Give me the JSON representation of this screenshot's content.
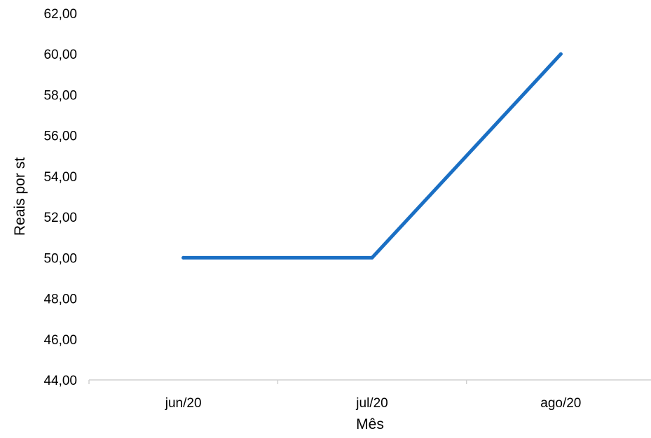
{
  "chart_data": {
    "type": "line",
    "title": "",
    "xlabel": "Mês",
    "ylabel": "Reais por st",
    "categories": [
      "jun/20",
      "jul/20",
      "ago/20"
    ],
    "series": [
      {
        "values": [
          50.0,
          50.0,
          60.0
        ]
      }
    ],
    "ylim": [
      44,
      62
    ],
    "yticks": [
      44,
      46,
      48,
      50,
      52,
      54,
      56,
      58,
      60,
      62
    ],
    "ytick_labels": [
      "44,00",
      "46,00",
      "48,00",
      "50,00",
      "52,00",
      "54,00",
      "56,00",
      "58,00",
      "60,00",
      "62,00"
    ],
    "grid": false,
    "legend": "none",
    "colors": {
      "line": "#1a6fc4",
      "axis": "#d0d0d0"
    }
  }
}
